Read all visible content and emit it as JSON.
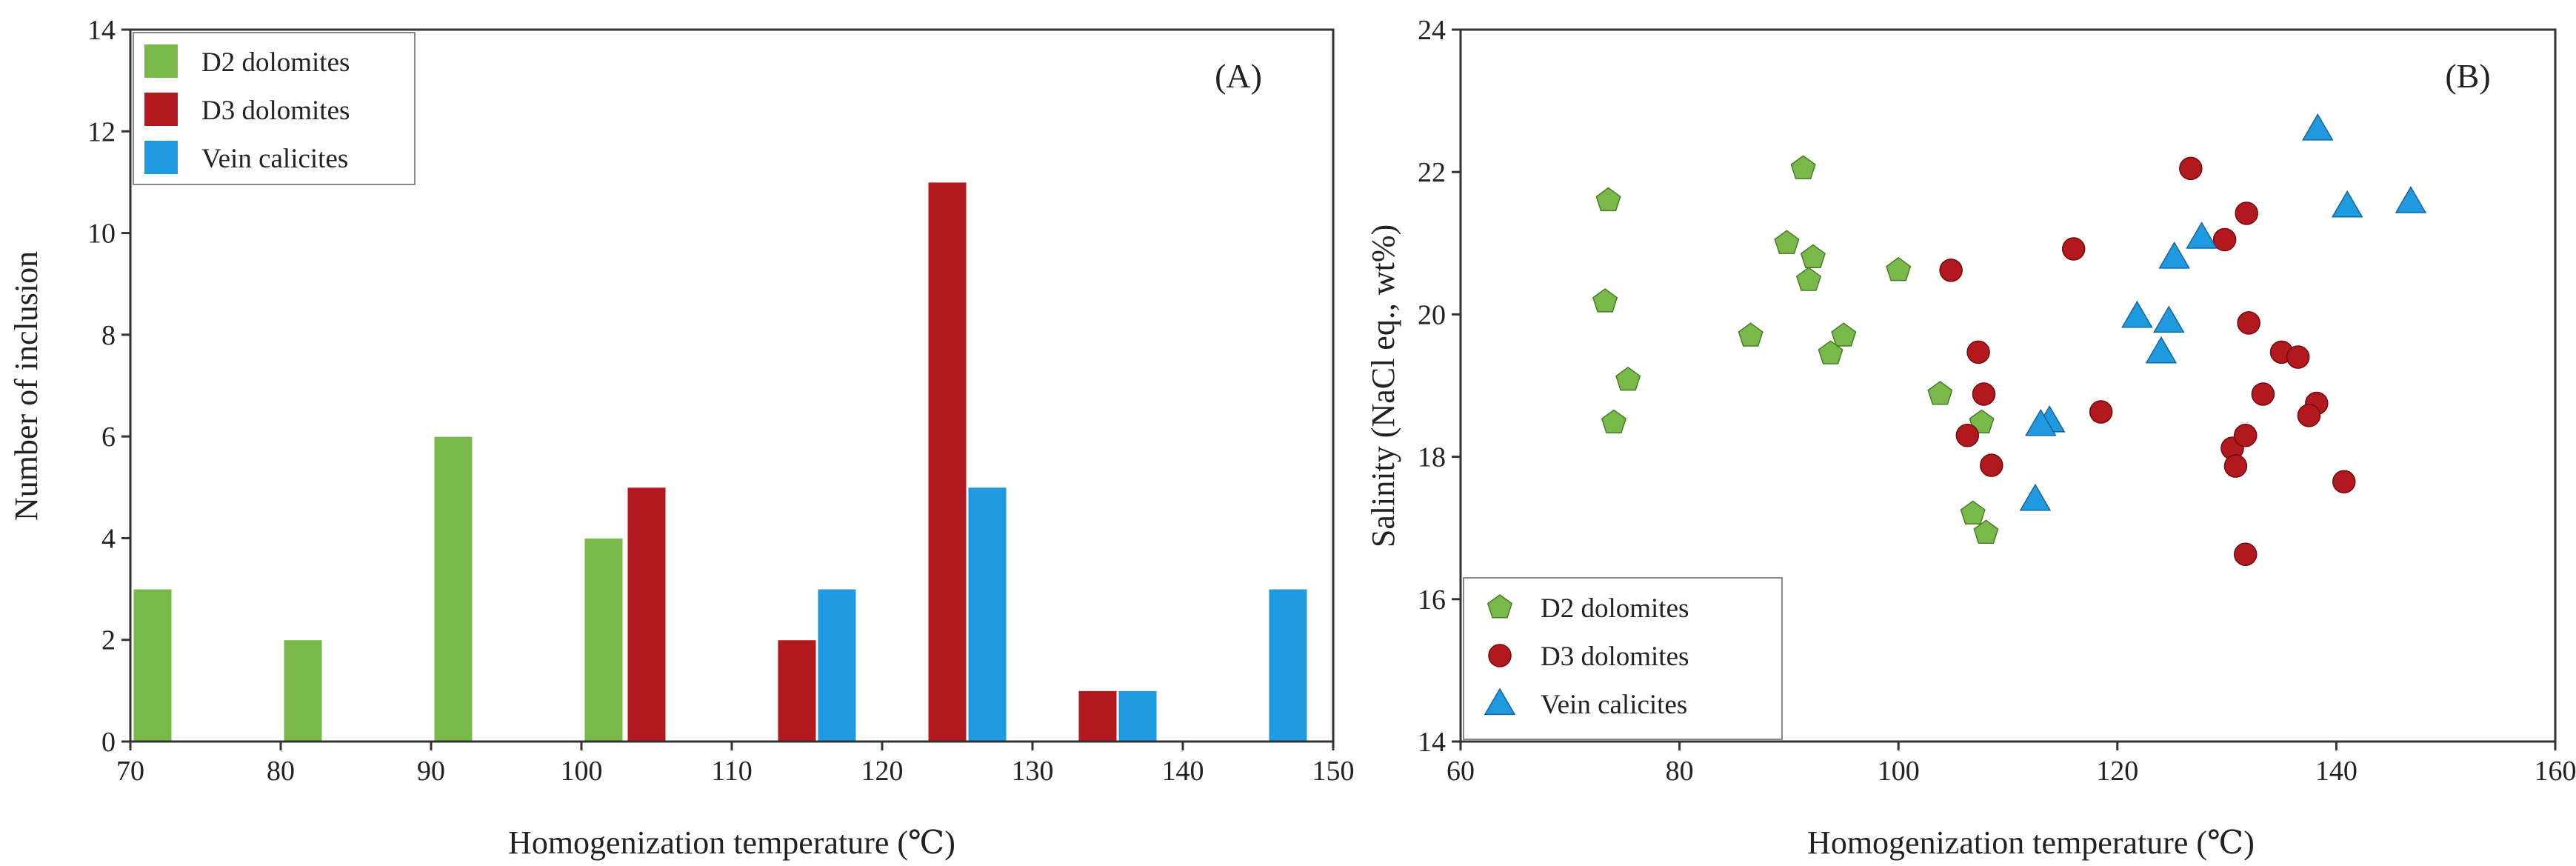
{
  "colors": {
    "d2": "#79b94a",
    "d3": "#b3181e",
    "vein": "#1f9ae0",
    "axis": "#333333"
  },
  "chart_data": [
    {
      "type": "bar",
      "panel_label": "(A)",
      "title": "",
      "xlabel": "Homogenization temperature (℃)",
      "ylabel": "Number of inclusion",
      "xlim": [
        70,
        150
      ],
      "ylim": [
        0,
        14
      ],
      "xticks": [
        70,
        80,
        90,
        100,
        110,
        120,
        130,
        140,
        150
      ],
      "yticks": [
        0,
        2,
        4,
        6,
        8,
        10,
        12,
        14
      ],
      "bin_width": 10,
      "bins": [
        "70-80",
        "80-90",
        "90-100",
        "100-110",
        "110-120",
        "120-130",
        "130-140",
        "140-150"
      ],
      "legend_position": "top-left",
      "series": [
        {
          "name": "D2 dolomites",
          "key": "d2",
          "values": [
            3,
            2,
            6,
            4,
            0,
            0,
            0,
            0
          ]
        },
        {
          "name": "D3 dolomites",
          "key": "d3",
          "values": [
            0,
            0,
            0,
            5,
            2,
            11,
            1,
            0
          ]
        },
        {
          "name": "Vein calicites",
          "key": "vein",
          "values": [
            0,
            0,
            0,
            0,
            3,
            5,
            1,
            3
          ]
        }
      ]
    },
    {
      "type": "scatter",
      "panel_label": "(B)",
      "title": "",
      "xlabel": "Homogenization temperature (℃)",
      "ylabel": "Salinity (NaCl eq., wt%)",
      "xlim": [
        60,
        160
      ],
      "ylim": [
        14,
        24
      ],
      "xticks": [
        60,
        80,
        100,
        120,
        140,
        160
      ],
      "yticks": [
        14,
        16,
        18,
        20,
        22,
        24
      ],
      "legend_position": "bottom-left",
      "series": [
        {
          "name": "D2 dolomites",
          "key": "d2",
          "marker": "pentagon",
          "x": [
            73.5,
            91.3,
            89.8,
            92.2,
            91.8,
            73.2,
            75.3,
            86.5,
            95.0,
            93.8,
            100.0,
            74.0,
            103.8,
            107.6,
            106.8,
            108.0
          ],
          "y": [
            21.6,
            22.05,
            21.0,
            20.8,
            20.48,
            20.18,
            19.08,
            19.7,
            19.7,
            19.45,
            20.62,
            18.48,
            18.88,
            18.48,
            17.2,
            16.93
          ]
        },
        {
          "name": "D3 dolomites",
          "key": "d3",
          "marker": "circle",
          "x": [
            104.8,
            116.0,
            107.3,
            107.8,
            106.3,
            108.5,
            118.5,
            126.7,
            129.8,
            131.8,
            132.0,
            135.0,
            136.5,
            133.3,
            138.2,
            137.5,
            130.5,
            131.7,
            130.8,
            140.7,
            131.7
          ],
          "y": [
            20.62,
            20.92,
            19.47,
            18.88,
            18.3,
            17.88,
            18.63,
            22.05,
            21.05,
            21.42,
            19.88,
            19.47,
            19.4,
            18.88,
            18.75,
            18.58,
            18.12,
            18.3,
            17.87,
            17.65,
            16.63
          ]
        },
        {
          "name": "Vein calicites",
          "key": "vein",
          "marker": "triangle",
          "x": [
            138.3,
            141.0,
            146.8,
            127.7,
            125.2,
            121.8,
            124.7,
            124.0,
            113.8,
            113.0,
            112.5
          ],
          "y": [
            22.6,
            21.52,
            21.58,
            21.08,
            20.8,
            19.97,
            19.9,
            19.47,
            18.5,
            18.45,
            17.4
          ]
        }
      ]
    }
  ]
}
